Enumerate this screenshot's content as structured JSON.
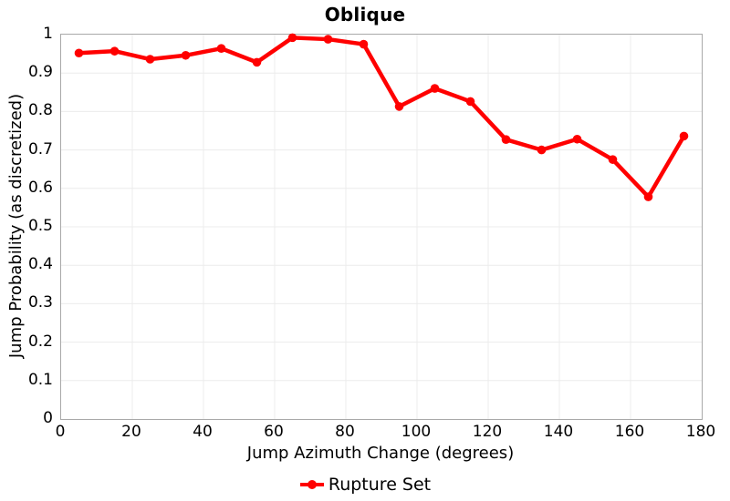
{
  "chart_data": {
    "type": "line",
    "title": "Oblique",
    "xlabel": "Jump Azimuth Change (degrees)",
    "ylabel": "Jump Probability (as discretized)",
    "x": [
      5,
      15,
      25,
      35,
      45,
      55,
      65,
      75,
      85,
      95,
      105,
      115,
      125,
      135,
      145,
      155,
      165,
      175
    ],
    "series": [
      {
        "name": "Rupture Set",
        "values": [
          0.952,
          0.957,
          0.936,
          0.946,
          0.964,
          0.928,
          0.992,
          0.988,
          0.975,
          0.813,
          0.86,
          0.826,
          0.727,
          0.7,
          0.728,
          0.675,
          0.578,
          0.736
        ],
        "color": "#ff0000"
      }
    ],
    "xlim": [
      0,
      180
    ],
    "ylim": [
      0,
      1
    ],
    "x_ticks": [
      0,
      20,
      40,
      60,
      80,
      100,
      120,
      140,
      160,
      180
    ],
    "x_tick_labels": [
      "0",
      "20",
      "40",
      "60",
      "80",
      "100",
      "120",
      "140",
      "160",
      "180"
    ],
    "y_ticks": [
      0,
      0.1,
      0.2,
      0.3,
      0.4,
      0.5,
      0.6,
      0.7,
      0.8,
      0.9,
      1
    ],
    "y_tick_labels": [
      "0",
      "0.1",
      "0.2",
      "0.3",
      "0.4",
      "0.5",
      "0.6",
      "0.7",
      "0.8",
      "0.9",
      "1"
    ],
    "grid": true,
    "legend_position": "bottom"
  },
  "legend": {
    "label": "Rupture Set"
  },
  "colors": {
    "series": "#ff0000",
    "grid": "#ececec",
    "plot_border": "#a9a9a9",
    "text": "#000000"
  }
}
